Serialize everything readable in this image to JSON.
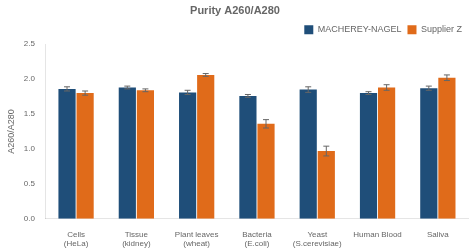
{
  "chart_data": {
    "type": "bar",
    "title": "Purity A260/A280",
    "ylabel": "A260/A280",
    "categories": [
      "Cells\n(HeLa)",
      "Tissue\n(kidney)",
      "Plant leaves\n(wheat)",
      "Bacteria\n(E.coli)",
      "Yeast\n(S.cerevisiae)",
      "Human Blood",
      "Saliva"
    ],
    "series": [
      {
        "name": "MACHEREY-NAGEL",
        "color": "#1f4e79",
        "values": [
          1.86,
          1.88,
          1.81,
          1.76,
          1.85,
          1.8,
          1.87
        ],
        "errors": [
          0.03,
          0.02,
          0.03,
          0.02,
          0.04,
          0.02,
          0.03
        ]
      },
      {
        "name": "Supplier Z",
        "color": "#e06b1a",
        "values": [
          1.8,
          1.84,
          2.06,
          1.36,
          0.97,
          1.88,
          2.02
        ],
        "errors": [
          0.03,
          0.02,
          0.02,
          0.06,
          0.07,
          0.04,
          0.04
        ]
      }
    ],
    "ylim": [
      0,
      2.5
    ],
    "yticks": [
      {
        "value": 0,
        "label": "0.0"
      },
      0.5,
      {
        "value": 1.0,
        "label": "1.0"
      },
      1.5,
      {
        "value": 2.0,
        "label": "2.0"
      },
      2.5
    ],
    "grid": false,
    "legend": "upper right"
  }
}
